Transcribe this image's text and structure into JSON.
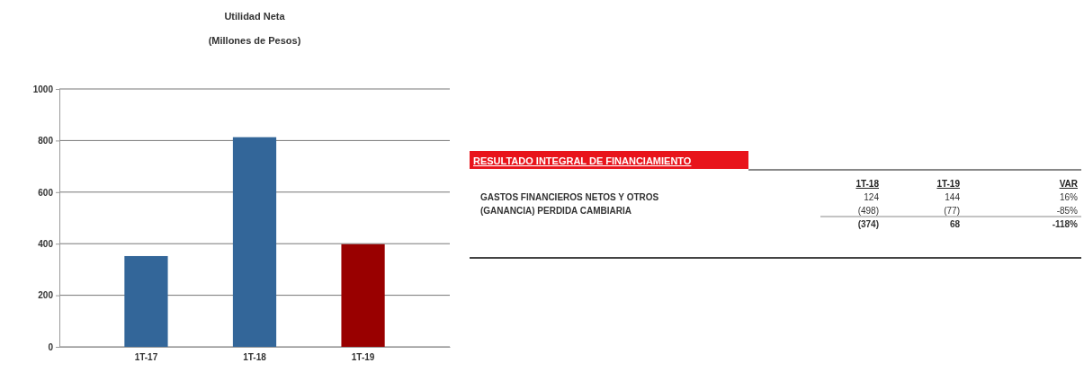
{
  "chart_data": [
    {
      "type": "bar",
      "title": "Utilidad Neta",
      "subtitle": "(Millones de Pesos)",
      "categories": [
        "1T-17",
        "1T-18",
        "1T-19"
      ],
      "values": [
        352,
        813,
        398
      ],
      "colors": [
        "#336699",
        "#336699",
        "#990000"
      ],
      "ylim": [
        0,
        1000
      ],
      "yticks": [
        0,
        200,
        400,
        600,
        800,
        1000
      ],
      "grid": "y"
    },
    {
      "type": "other",
      "title": "RESULTADO INTEGRAL DE FINANCIAMIENTO",
      "annotations": [
        "1T-18",
        "1T-19",
        "VAR",
        "GASTOS FINANCIEROS NETOS Y OTROS",
        "124",
        "144",
        "16%",
        "(GANANCIA) PERDIDA CAMBIARIA",
        "(498)",
        "(77)",
        "-85%",
        "(374)",
        "68",
        "-118%"
      ]
    }
  ]
}
